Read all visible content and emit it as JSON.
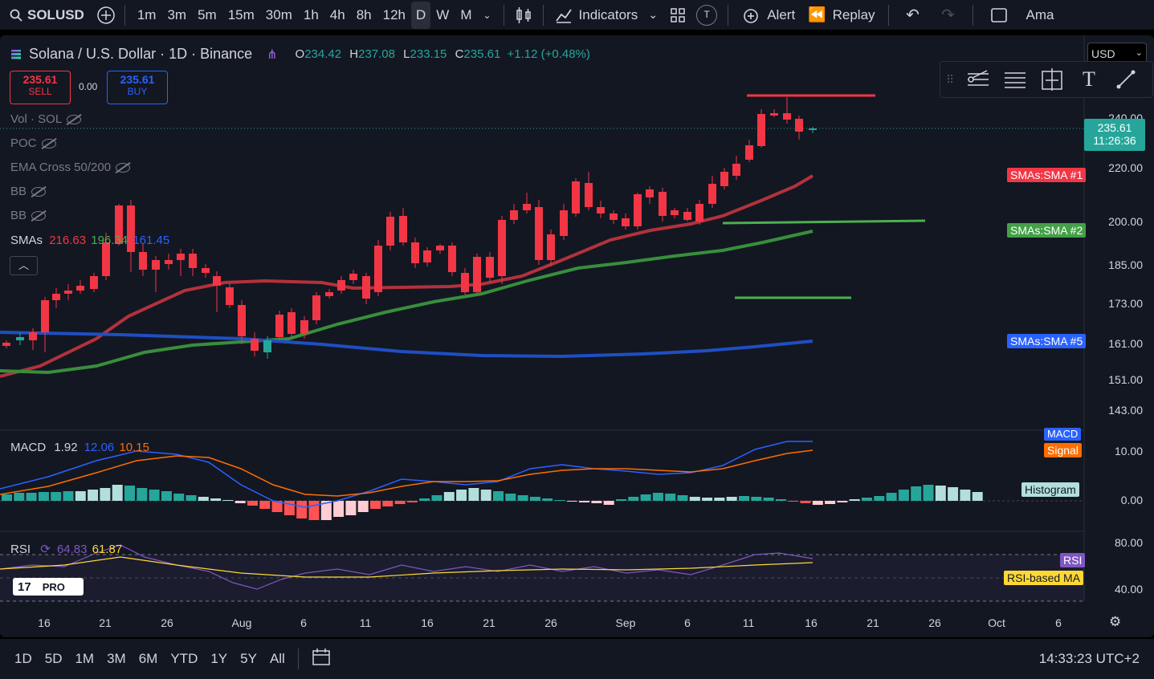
{
  "symbol": "SOLUSD",
  "timeframes": [
    "1m",
    "3m",
    "5m",
    "15m",
    "30m",
    "1h",
    "4h",
    "8h",
    "12h",
    "D",
    "W",
    "M"
  ],
  "active_timeframe": "D",
  "toolbar": {
    "indicators": "Indicators",
    "t_label": "T",
    "alert": "Alert",
    "replay": "Replay",
    "account_label": "Ama"
  },
  "header": {
    "title": "Solana / U.S. Dollar · 1D · Binance",
    "o_label": "O",
    "o": "234.42",
    "h_label": "H",
    "h": "237.08",
    "l_label": "L",
    "l": "233.15",
    "c_label": "C",
    "c": "235.61",
    "change": "+1.12 (+0.48%)",
    "currency": "USD"
  },
  "trade": {
    "sell_price": "235.61",
    "sell_label": "SELL",
    "spread": "0.00",
    "buy_price": "235.61",
    "buy_label": "BUY"
  },
  "indicators_list": {
    "vol": "Vol · SOL",
    "poc": "POC",
    "ema": "EMA Cross 50/200",
    "bb1": "BB",
    "bb2": "BB",
    "smas": "SMAs",
    "sma1": "216.63",
    "sma2": "196.34",
    "sma3": "161.45"
  },
  "price_axis": [
    "240.00",
    "220.00",
    "200.00",
    "185.00",
    "173.00",
    "161.00",
    "151.00",
    "143.00"
  ],
  "current_price": {
    "value": "235.61",
    "countdown": "11:26:36"
  },
  "sma_tags": {
    "sma1": "SMAs:SMA #1",
    "sma2": "SMAs:SMA #2",
    "sma5": "SMAs:SMA #5"
  },
  "macd": {
    "label": "MACD",
    "v1": "1.92",
    "v2": "12.06",
    "v3": "10.15",
    "tag_macd": "MACD",
    "tag_signal": "Signal",
    "tag_hist": "Histogram",
    "axis": [
      "10.00",
      "0.00"
    ]
  },
  "rsi": {
    "label": "RSI",
    "v1": "64.83",
    "v2": "61.87",
    "tag_rsi": "RSI",
    "tag_ma": "RSI-based MA",
    "axis": [
      "80.00",
      "40.00"
    ]
  },
  "x_axis": [
    "16",
    "21",
    "26",
    "Aug",
    "6",
    "11",
    "16",
    "21",
    "26",
    "Sep",
    "6",
    "11",
    "16",
    "21",
    "26",
    "Oct",
    "6"
  ],
  "logo_label": "PRO",
  "ranges": [
    "1D",
    "5D",
    "1M",
    "3M",
    "6M",
    "YTD",
    "1Y",
    "5Y",
    "All"
  ],
  "clock": "14:33:23 UTC+2",
  "colors": {
    "bg": "#131722",
    "up": "#26a69a",
    "down": "#f23645",
    "sma1": "#b2323c",
    "sma2": "#388e3c",
    "sma5": "#1e4fc2"
  }
}
